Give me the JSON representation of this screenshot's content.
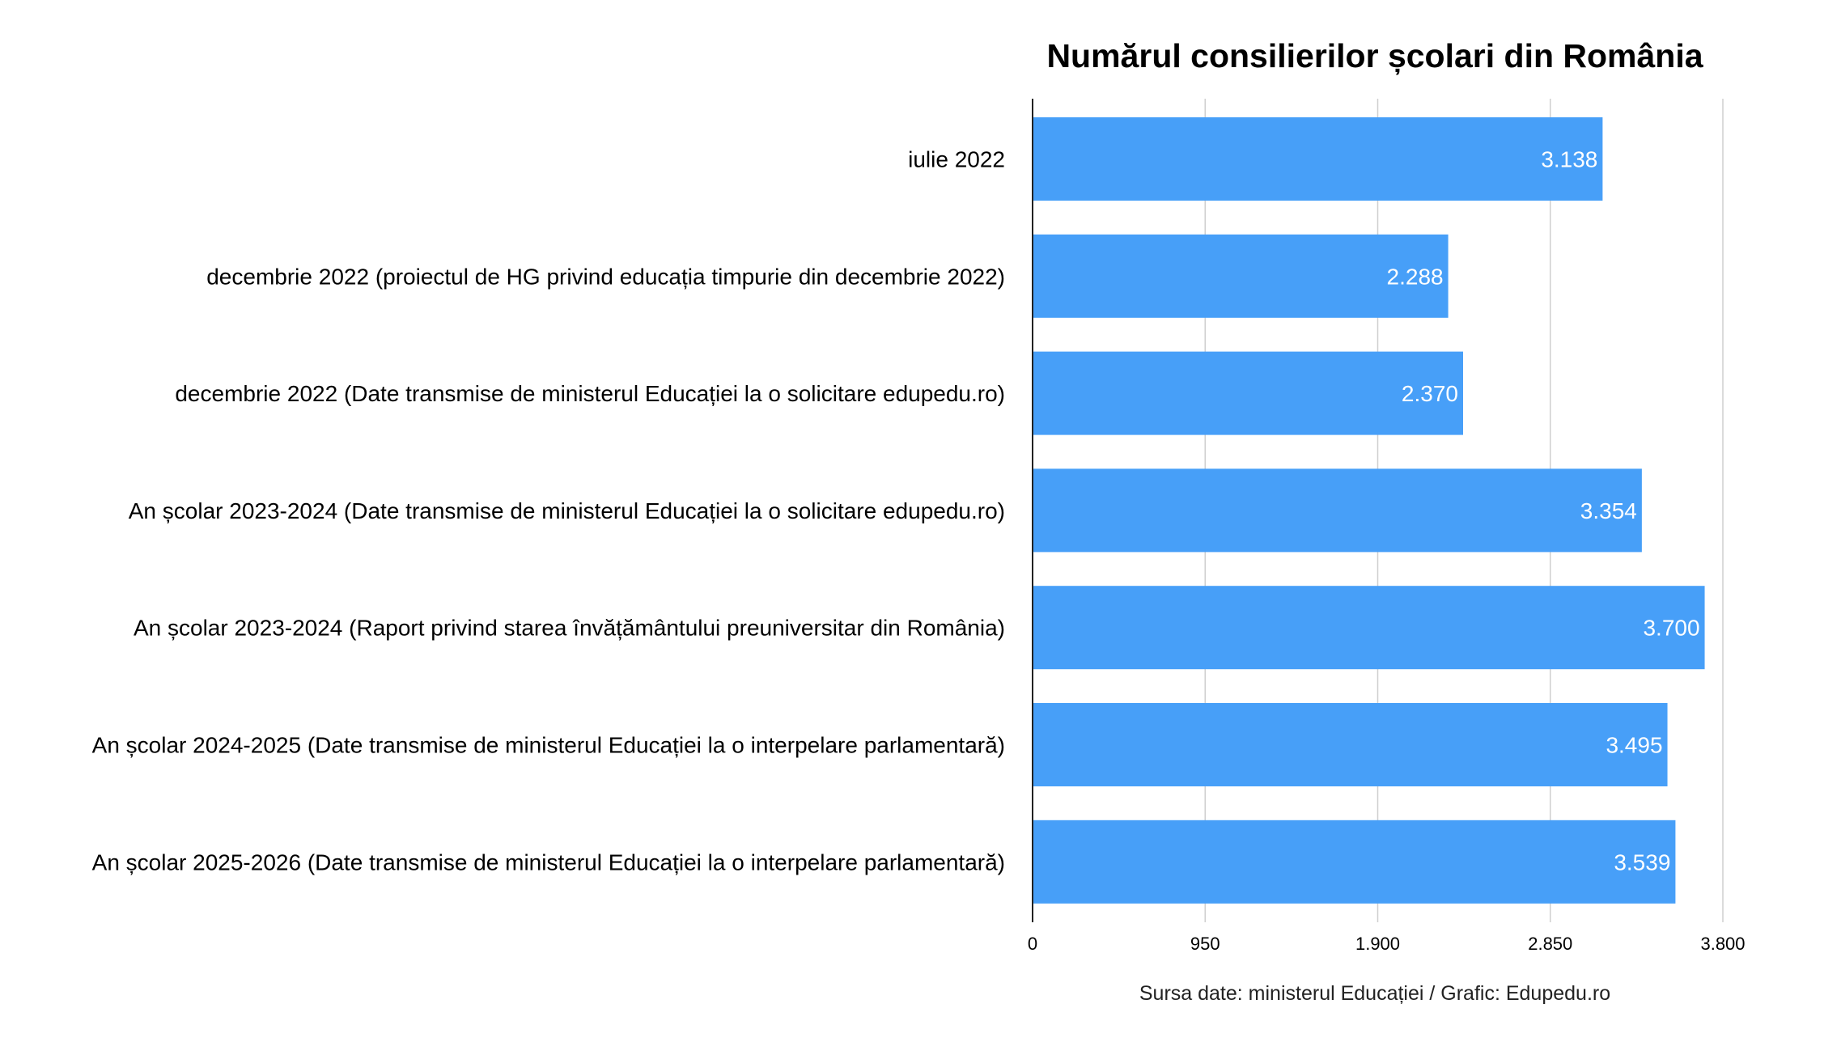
{
  "chart_data": {
    "type": "bar",
    "orientation": "horizontal",
    "title": "Numărul consilierilor școlari din România",
    "categories": [
      "iulie 2022",
      "decembrie 2022 (proiectul de HG privind educația timpurie din decembrie 2022)",
      "decembrie 2022 (Date transmise de ministerul Educației la o solicitare edupedu.ro)",
      "An școlar 2023-2024 (Date transmise de ministerul Educației la o solicitare edupedu.ro)",
      "An școlar 2023-2024 (Raport privind starea învățământului preuniversitar din România)",
      "An școlar 2024-2025 (Date transmise de ministerul Educației la o interpelare parlamentară)",
      "An școlar 2025-2026 (Date transmise de ministerul Educației la o interpelare parlamentară)"
    ],
    "values": [
      3138,
      2288,
      2370,
      3354,
      3700,
      3495,
      3539
    ],
    "value_labels": [
      "3.138",
      "2.288",
      "2.370",
      "3.354",
      "3.700",
      "3.495",
      "3.539"
    ],
    "xlim": [
      0,
      3800
    ],
    "xticks": [
      0,
      950,
      1900,
      2850,
      3800
    ],
    "xtick_labels": [
      "0",
      "950",
      "1.900",
      "2.850",
      "3.800"
    ],
    "xlabel": "",
    "ylabel": "",
    "grid": true,
    "bar_color": "#479ff8",
    "source": "Sursa date: ministerul Educației / Grafic: Edupedu.ro"
  }
}
